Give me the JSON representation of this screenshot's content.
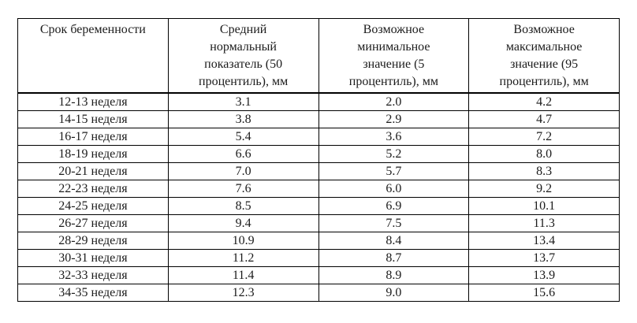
{
  "page": {
    "background_color": "#ffffff",
    "text_color": "#1c1c1c",
    "border_color": "#000000"
  },
  "table": {
    "headers": [
      "Срок беременности",
      "Средний\nнормальный\nпоказатель (50\nпроцентиль), мм",
      "Возможное\nминимальное\nзначение (5\nпроцентиль), мм",
      "Возможное\nмаксимальное\nзначение (95\nпроцентиль), мм"
    ],
    "rows": [
      [
        "12-13 неделя",
        "3.1",
        "2.0",
        "4.2"
      ],
      [
        "14-15 неделя",
        "3.8",
        "2.9",
        "4.7"
      ],
      [
        "16-17 неделя",
        "5.4",
        "3.6",
        "7.2"
      ],
      [
        "18-19 неделя",
        "6.6",
        "5.2",
        "8.0"
      ],
      [
        "20-21 неделя",
        "7.0",
        "5.7",
        "8.3"
      ],
      [
        "22-23 неделя",
        "7.6",
        "6.0",
        "9.2"
      ],
      [
        "24-25 неделя",
        "8.5",
        "6.9",
        "10.1"
      ],
      [
        "26-27 неделя",
        "9.4",
        "7.5",
        "11.3"
      ],
      [
        "28-29 неделя",
        "10.9",
        "8.4",
        "13.4"
      ],
      [
        "30-31 неделя",
        "11.2",
        "8.7",
        "13.7"
      ],
      [
        "32-33 неделя",
        "11.4",
        "8.9",
        "13.9"
      ],
      [
        "34-35 неделя",
        "12.3",
        "9.0",
        "15.6"
      ]
    ]
  },
  "chart_data": {
    "type": "table",
    "title": "",
    "columns": [
      "Срок беременности",
      "Средний нормальный показатель (50 процентиль), мм",
      "Возможное минимальное значение (5 процентиль), мм",
      "Возможное максимальное значение (95 процентиль), мм"
    ],
    "categories": [
      "12-13 неделя",
      "14-15 неделя",
      "16-17 неделя",
      "18-19 неделя",
      "20-21 неделя",
      "22-23 неделя",
      "24-25 неделя",
      "26-27 неделя",
      "28-29 неделя",
      "30-31 неделя",
      "32-33 неделя",
      "34-35 неделя"
    ],
    "series": [
      {
        "name": "Средний нормальный показатель (50 процентиль), мм",
        "values": [
          3.1,
          3.8,
          5.4,
          6.6,
          7.0,
          7.6,
          8.5,
          9.4,
          10.9,
          11.2,
          11.4,
          12.3
        ]
      },
      {
        "name": "Возможное минимальное значение (5 процентиль), мм",
        "values": [
          2.0,
          2.9,
          3.6,
          5.2,
          5.7,
          6.0,
          6.9,
          7.5,
          8.4,
          8.7,
          8.9,
          9.0
        ]
      },
      {
        "name": "Возможное максимальное значение (95 процентиль), мм",
        "values": [
          4.2,
          4.7,
          7.2,
          8.0,
          8.3,
          9.2,
          10.1,
          11.3,
          13.4,
          13.7,
          13.9,
          15.6
        ]
      }
    ]
  }
}
